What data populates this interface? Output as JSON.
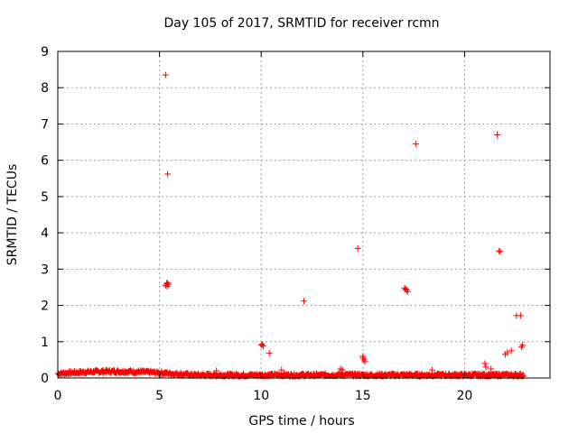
{
  "chart_data": {
    "type": "scatter",
    "title": "Day 105 of 2017, SRMTID for receiver rcmn",
    "xlabel": "GPS time / hours",
    "ylabel": "SRMTID / TECUs",
    "xlim": [
      0,
      24.2
    ],
    "ylim": [
      0,
      9
    ],
    "xticks": [
      0,
      5,
      10,
      15,
      20
    ],
    "yticks": [
      0,
      1,
      2,
      3,
      4,
      5,
      6,
      7,
      8,
      9
    ],
    "grid": true,
    "marker": "+",
    "color": "#ff0000",
    "series": [
      {
        "name": "SRMTID",
        "points": [
          [
            5.3,
            8.35
          ],
          [
            5.4,
            5.62
          ],
          [
            5.3,
            2.55
          ],
          [
            5.35,
            2.6
          ],
          [
            5.4,
            2.62
          ],
          [
            5.45,
            2.58
          ],
          [
            5.38,
            2.52
          ],
          [
            10.0,
            0.9
          ],
          [
            10.05,
            0.93
          ],
          [
            10.1,
            0.88
          ],
          [
            10.4,
            0.68
          ],
          [
            12.1,
            2.12
          ],
          [
            14.75,
            3.57
          ],
          [
            15.0,
            0.55
          ],
          [
            15.05,
            0.5
          ],
          [
            15.1,
            0.45
          ],
          [
            15.0,
            0.6
          ],
          [
            17.05,
            2.48
          ],
          [
            17.15,
            2.42
          ],
          [
            17.2,
            2.38
          ],
          [
            17.1,
            2.45
          ],
          [
            17.6,
            6.45
          ],
          [
            21.0,
            0.4
          ],
          [
            21.05,
            0.3
          ],
          [
            21.6,
            6.7
          ],
          [
            21.7,
            3.5
          ],
          [
            21.75,
            3.48
          ],
          [
            22.0,
            0.65
          ],
          [
            22.1,
            0.7
          ],
          [
            22.3,
            0.75
          ],
          [
            22.55,
            1.72
          ],
          [
            22.75,
            1.72
          ],
          [
            22.8,
            0.85
          ],
          [
            22.85,
            0.9
          ],
          [
            13.9,
            0.25
          ],
          [
            14.0,
            0.22
          ],
          [
            21.3,
            0.25
          ],
          [
            18.4,
            0.22
          ],
          [
            11.0,
            0.22
          ],
          [
            7.8,
            0.2
          ]
        ]
      }
    ],
    "baseline": {
      "x_range": [
        0,
        22.9
      ],
      "typical_level": [
        0.03,
        0.2
      ]
    }
  }
}
